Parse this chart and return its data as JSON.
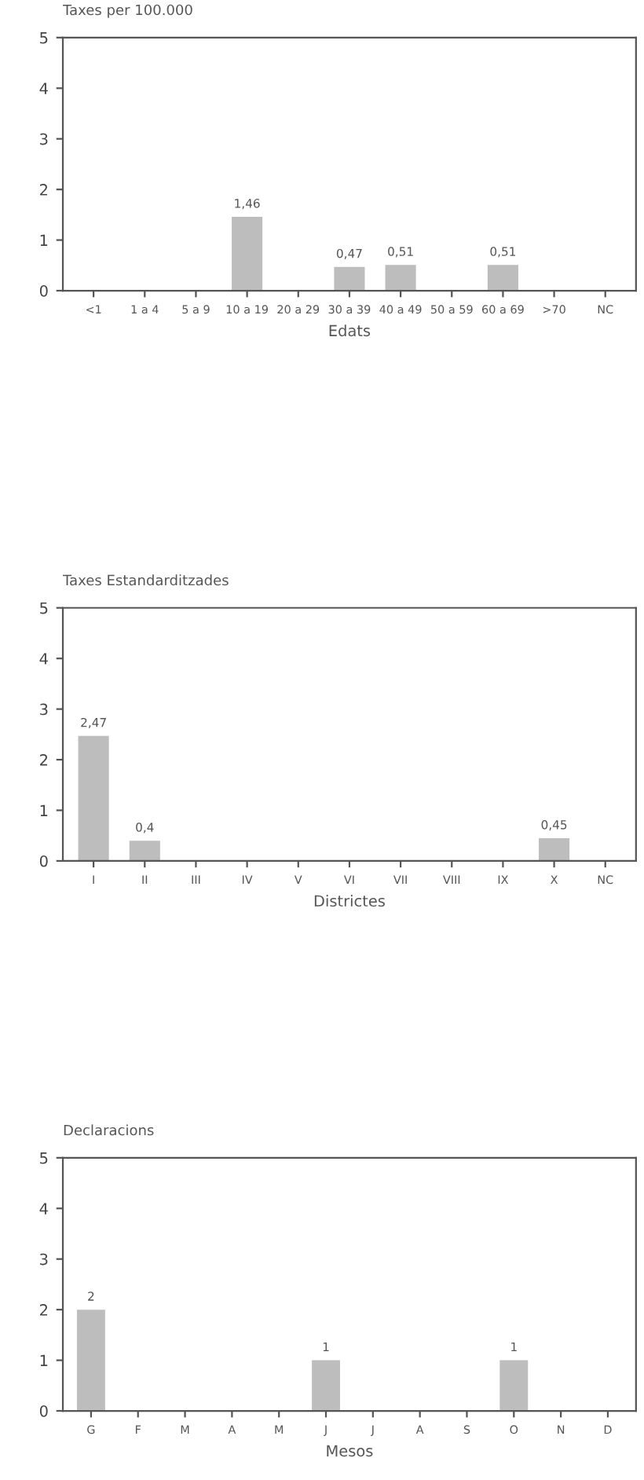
{
  "chart_data": [
    {
      "type": "bar",
      "ylabel": "Taxes per 100.000",
      "xlabel": "Edats",
      "categories": [
        "<1",
        "1 a 4",
        "5 a 9",
        "10 a 19",
        "20 a 29",
        "30 a 39",
        "40 a 49",
        "50 a 59",
        "60 a 69",
        ">70",
        "NC"
      ],
      "values": [
        0,
        0,
        0,
        1.46,
        0,
        0.47,
        0.51,
        0,
        0.51,
        0,
        0
      ],
      "value_labels": [
        null,
        null,
        null,
        "1,46",
        null,
        "0,47",
        "0,51",
        null,
        "0,51",
        null,
        null
      ],
      "color": "#bdbdbd",
      "ylim": [
        0,
        5
      ],
      "yticks": [
        0,
        1,
        2,
        3,
        4,
        5
      ],
      "grid": false,
      "legend": false
    },
    {
      "type": "bar",
      "ylabel": "Taxes Estandarditzades",
      "xlabel": "Districtes",
      "categories": [
        "I",
        "II",
        "III",
        "IV",
        "V",
        "VI",
        "VII",
        "VIII",
        "IX",
        "X",
        "NC"
      ],
      "values": [
        2.47,
        0.4,
        0,
        0,
        0,
        0,
        0,
        0,
        0,
        0.45,
        0
      ],
      "value_labels": [
        "2,47",
        "0,4",
        null,
        null,
        null,
        null,
        null,
        null,
        null,
        "0,45",
        null
      ],
      "color": "#bdbdbd",
      "ylim": [
        0,
        5
      ],
      "yticks": [
        0,
        1,
        2,
        3,
        4,
        5
      ],
      "grid": false,
      "legend": false
    },
    {
      "type": "bar",
      "ylabel": "Declaracions",
      "xlabel": "Mesos",
      "categories": [
        "G",
        "F",
        "M",
        "A",
        "M",
        "J",
        "J",
        "A",
        "S",
        "O",
        "N",
        "D"
      ],
      "values": [
        2,
        0,
        0,
        0,
        0,
        1,
        0,
        0,
        0,
        1,
        0,
        0
      ],
      "value_labels": [
        "2",
        null,
        null,
        null,
        null,
        "1",
        null,
        null,
        null,
        "1",
        null,
        null
      ],
      "color": "#bdbdbd",
      "ylim": [
        0,
        5
      ],
      "yticks": [
        0,
        1,
        2,
        3,
        4,
        5
      ],
      "grid": false,
      "legend": false
    }
  ]
}
